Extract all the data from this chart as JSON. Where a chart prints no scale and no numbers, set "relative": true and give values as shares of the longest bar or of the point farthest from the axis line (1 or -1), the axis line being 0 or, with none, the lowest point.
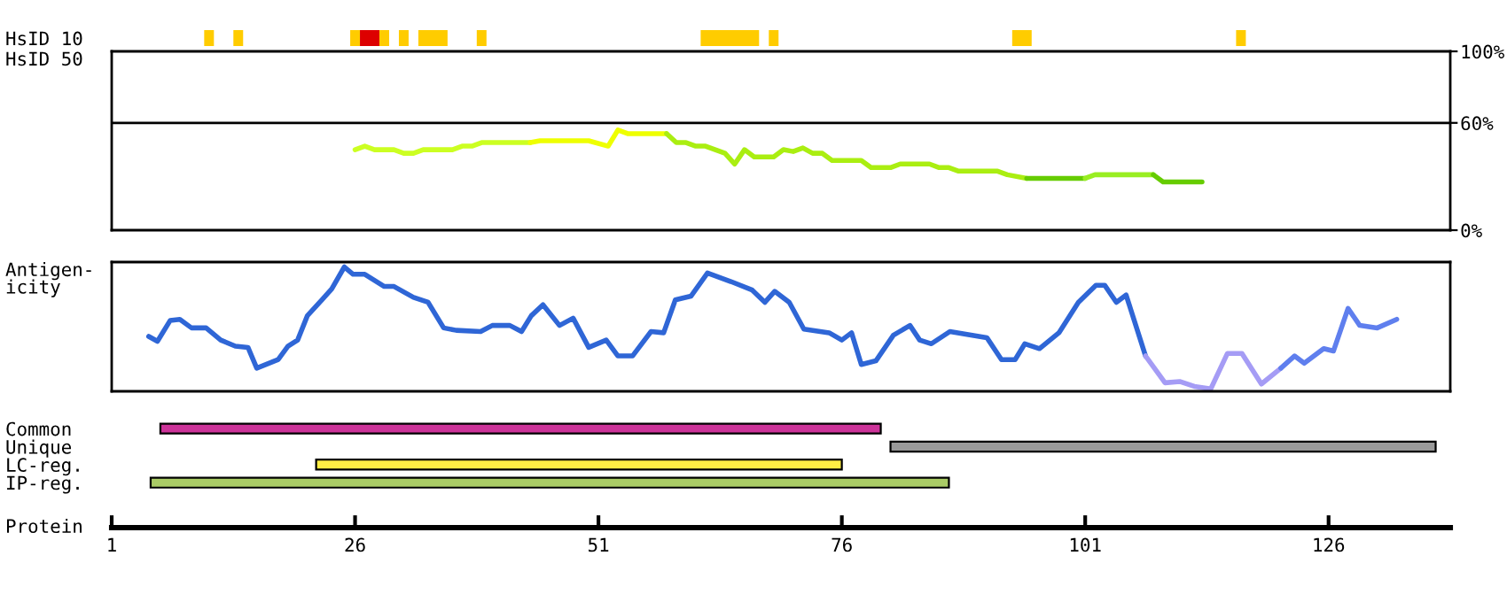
{
  "chart_data": [
    {
      "type": "bar",
      "orientation": "horizontal",
      "categories": [
        "HsID 10"
      ],
      "xlim": [
        1,
        138.5
      ],
      "tick_labels": "y",
      "series": [
        {
          "color": "#ffcc00",
          "base": [
            10.5
          ],
          "values": [
            1
          ]
        },
        {
          "color": "#ffcc00",
          "base": [
            13.5
          ],
          "values": [
            1
          ]
        },
        {
          "color": "#ffcc00",
          "base": [
            25.5
          ],
          "values": [
            1
          ]
        },
        {
          "color": "#dd0000",
          "base": [
            26.5
          ],
          "values": [
            2
          ]
        },
        {
          "color": "#ffcc00",
          "base": [
            28.5
          ],
          "values": [
            1
          ]
        },
        {
          "color": "#ffcc00",
          "base": [
            30.5
          ],
          "values": [
            1
          ]
        },
        {
          "color": "#ffcc00",
          "base": [
            32.5
          ],
          "values": [
            3
          ]
        },
        {
          "color": "#ffcc00",
          "base": [
            38.5
          ],
          "values": [
            1
          ]
        },
        {
          "color": "#ffcc00",
          "base": [
            61.5
          ],
          "values": [
            6
          ]
        },
        {
          "color": "#ffcc00",
          "base": [
            68.5
          ],
          "values": [
            1
          ]
        },
        {
          "color": "#ffcc00",
          "base": [
            93.5
          ],
          "values": [
            2
          ]
        },
        {
          "color": "#ffcc00",
          "base": [
            116.5
          ],
          "values": [
            1
          ]
        }
      ]
    },
    {
      "type": "line",
      "ylabel": "HsID 50",
      "xlim": [
        1,
        138.5
      ],
      "ylim": [
        0,
        100
      ],
      "tick_labels": "y",
      "yticks": [
        {
          "value": 0,
          "label": "0%"
        },
        {
          "value": 60,
          "label": "60%"
        },
        {
          "value": 100,
          "label": "100%"
        }
      ],
      "ref_lines": [
        {
          "axis": "y",
          "value": 60,
          "color": "#000000"
        }
      ],
      "series": [
        {
          "color": "#ccff22",
          "x": [
            26,
            27,
            28,
            30,
            31,
            32,
            33,
            36,
            37,
            38,
            39,
            44
          ],
          "values": [
            45,
            47,
            45,
            45,
            43,
            43,
            45,
            45,
            47,
            47,
            49,
            49
          ]
        },
        {
          "color": "#eeff00",
          "x": [
            44,
            45,
            50,
            52,
            53,
            54,
            58
          ],
          "values": [
            49,
            50,
            50,
            47,
            56,
            54,
            54
          ]
        },
        {
          "color": "#aaee11",
          "x": [
            58,
            59,
            60,
            61,
            62,
            64,
            65,
            66,
            67,
            69,
            70,
            71,
            72,
            73,
            74,
            75,
            78,
            79,
            81,
            82,
            85,
            86,
            87,
            88,
            92,
            93,
            95
          ],
          "values": [
            54,
            49,
            49,
            47,
            47,
            43,
            37,
            45,
            41,
            41,
            45,
            44,
            46,
            43,
            43,
            39,
            39,
            35,
            35,
            37,
            37,
            35,
            35,
            33,
            33,
            31,
            29
          ]
        },
        {
          "color": "#66cc00",
          "x": [
            95,
            101
          ],
          "values": [
            29,
            29
          ]
        },
        {
          "color": "#99ee22",
          "x": [
            101,
            102,
            108
          ],
          "values": [
            29,
            31,
            31
          ]
        },
        {
          "color": "#66cc00",
          "x": [
            108,
            109,
            113
          ],
          "values": [
            31,
            27,
            27
          ]
        }
      ]
    },
    {
      "type": "line",
      "ylabel": "Antigen-\nicity",
      "relative": true,
      "xlim": [
        1,
        138.5
      ],
      "tick_labels": false,
      "series": [
        {
          "color": "#2f66d6",
          "x": [
            4.8,
            5.7,
            7.0,
            8.0,
            9.2,
            10.7,
            12.2,
            13.7,
            15.0,
            15.9,
            18.1,
            19.1,
            20.1,
            21.1,
            22.6,
            23.6,
            24.9,
            25.8,
            27.0,
            29.0,
            30.0,
            32.0,
            33.5,
            35.1,
            36.4,
            38.9,
            40.1,
            41.9,
            43.1,
            44.1,
            45.3,
            47.0,
            48.4,
            50.0,
            51.8,
            53.0,
            54.5,
            56.4,
            57.7,
            58.9,
            60.5,
            62.2,
            64.6,
            66.8,
            68.1,
            69.1,
            70.6,
            72.1,
            74.7,
            76.0,
            77.0,
            78.0,
            79.5,
            81.3,
            83.0,
            84.0,
            85.2,
            87.1,
            90.9,
            92.4,
            93.8,
            94.8,
            96.3,
            98.3,
            100.3,
            102.1,
            103.0,
            104.2,
            105.2,
            107.2
          ],
          "values": [
            0.43,
            0.39,
            0.56,
            0.57,
            0.5,
            0.5,
            0.4,
            0.35,
            0.34,
            0.17,
            0.24,
            0.35,
            0.4,
            0.6,
            0.73,
            0.82,
            1.0,
            0.94,
            0.94,
            0.84,
            0.84,
            0.75,
            0.71,
            0.5,
            0.48,
            0.47,
            0.52,
            0.52,
            0.47,
            0.6,
            0.69,
            0.52,
            0.58,
            0.34,
            0.4,
            0.27,
            0.27,
            0.47,
            0.46,
            0.73,
            0.76,
            0.95,
            0.88,
            0.81,
            0.71,
            0.8,
            0.71,
            0.49,
            0.46,
            0.4,
            0.46,
            0.2,
            0.23,
            0.44,
            0.52,
            0.4,
            0.37,
            0.47,
            0.42,
            0.24,
            0.24,
            0.37,
            0.33,
            0.46,
            0.71,
            0.85,
            0.85,
            0.71,
            0.77,
            0.27
          ]
        },
        {
          "color": "#a59cf5",
          "x": [
            107.2,
            109.2,
            110.7,
            112.2,
            113.9,
            115.6,
            117.1,
            119.1,
            121.1
          ],
          "values": [
            0.27,
            0.05,
            0.06,
            0.02,
            0.0,
            0.29,
            0.29,
            0.04,
            0.17
          ]
        },
        {
          "color": "#5f7fee",
          "x": [
            121.1,
            122.5,
            123.5,
            125.5,
            126.5,
            128.0,
            129.2,
            131.0,
            133.0
          ],
          "values": [
            0.17,
            0.27,
            0.21,
            0.33,
            0.31,
            0.66,
            0.52,
            0.5,
            0.57
          ]
        }
      ]
    },
    {
      "type": "bar",
      "orientation": "horizontal",
      "categories": [
        "Common",
        "Unique",
        "LC-reg.",
        "IP-reg."
      ],
      "xlabel": "Protein",
      "base": [
        6,
        81,
        22,
        5
      ],
      "values": [
        74,
        56,
        54,
        82
      ],
      "colors": [
        "#cc3399",
        "#999999",
        "#ffee44",
        "#aacc66"
      ],
      "xlim": [
        1,
        138.5
      ],
      "xticks": [
        1,
        26,
        51,
        76,
        101,
        126
      ]
    }
  ]
}
